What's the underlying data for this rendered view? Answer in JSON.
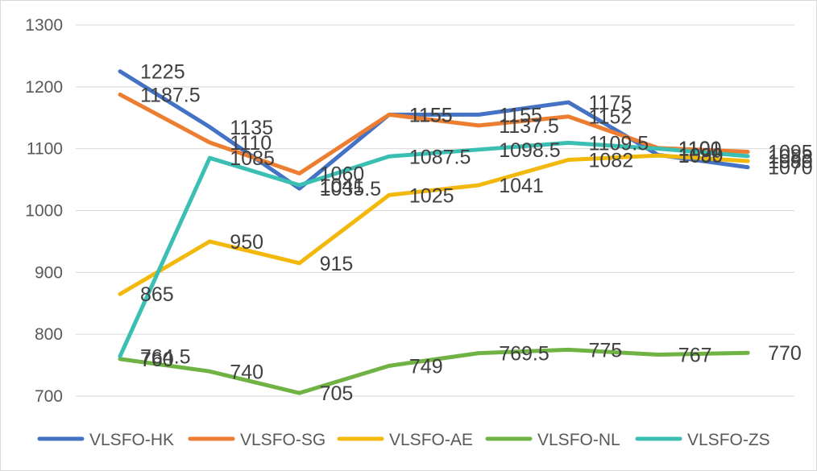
{
  "chart_data": {
    "type": "line",
    "title": "",
    "xlabel": "",
    "ylabel": "",
    "ylim": [
      700,
      1300
    ],
    "yticks": [
      700,
      800,
      900,
      1000,
      1100,
      1200,
      1300
    ],
    "y_tick_labels": [
      "700",
      "800",
      "900",
      "1000",
      "1100",
      "1200",
      "1300"
    ],
    "categories": [
      "",
      "",
      "",
      "",
      "",
      "",
      "",
      ""
    ],
    "grid": true,
    "legend_position": "bottom",
    "series": [
      {
        "name": "VLSFO-HK",
        "color": "#4472C4",
        "values": [
          1225,
          1135,
          1035.5,
          1155,
          1155,
          1175,
          1090,
          1070
        ],
        "labels": [
          "1225",
          "1135",
          "1035.5",
          "1155",
          "1155",
          "1175",
          "1090",
          "1070"
        ]
      },
      {
        "name": "VLSFO-SG",
        "color": "#ED7D31",
        "values": [
          1187.5,
          1110,
          1060,
          1155,
          1137.5,
          1152,
          1101,
          1095
        ],
        "labels": [
          "1187.5",
          "1110",
          "1060",
          "1155",
          "1137.5",
          "1152",
          "1101",
          "1095"
        ]
      },
      {
        "name": "VLSFO-AE",
        "color": "#F2B90C",
        "values": [
          865,
          950,
          915,
          1025,
          1041,
          1082,
          1089,
          1080
        ],
        "labels": [
          "865",
          "950",
          "915",
          "1025",
          "1041",
          "1082",
          "1089",
          "1080"
        ]
      },
      {
        "name": "VLSFO-NL",
        "color": "#70B244",
        "values": [
          760,
          740,
          705,
          749,
          769.5,
          775,
          767,
          770
        ],
        "labels": [
          "760",
          "740",
          "705",
          "749",
          "769.5",
          "775",
          "767",
          "770"
        ]
      },
      {
        "name": "VLSFO-ZS",
        "color": "#3BBFB3",
        "values": [
          764.5,
          1085,
          1041,
          1087.5,
          1098.5,
          1109.5,
          1100,
          1088
        ],
        "labels": [
          "764.5",
          "1085",
          "1041",
          "1087.5",
          "1098.5",
          "1109.5",
          "1100",
          "1088"
        ]
      }
    ]
  }
}
